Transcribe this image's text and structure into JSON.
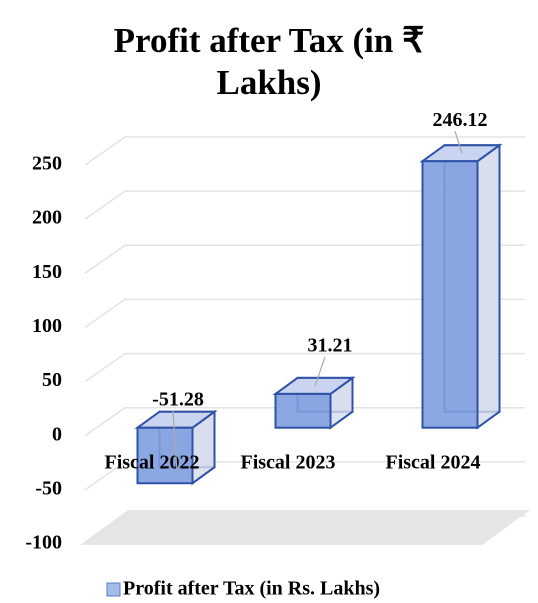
{
  "chart_data": {
    "type": "bar3d",
    "title": "Profit after Tax (in ₹ Lakhs)",
    "categories": [
      "Fiscal 2022",
      "Fiscal 2023",
      "Fiscal 2024"
    ],
    "series": [
      {
        "name": "Profit after Tax (in Rs. Lakhs)",
        "color": "#7f9fe0",
        "values": [
          -51.28,
          31.21,
          246.12
        ]
      }
    ],
    "ylim": [
      -100,
      250
    ],
    "yticks": [
      -100,
      -50,
      0,
      50,
      100,
      150,
      200,
      250
    ],
    "grid": true,
    "legend": "bottom"
  }
}
